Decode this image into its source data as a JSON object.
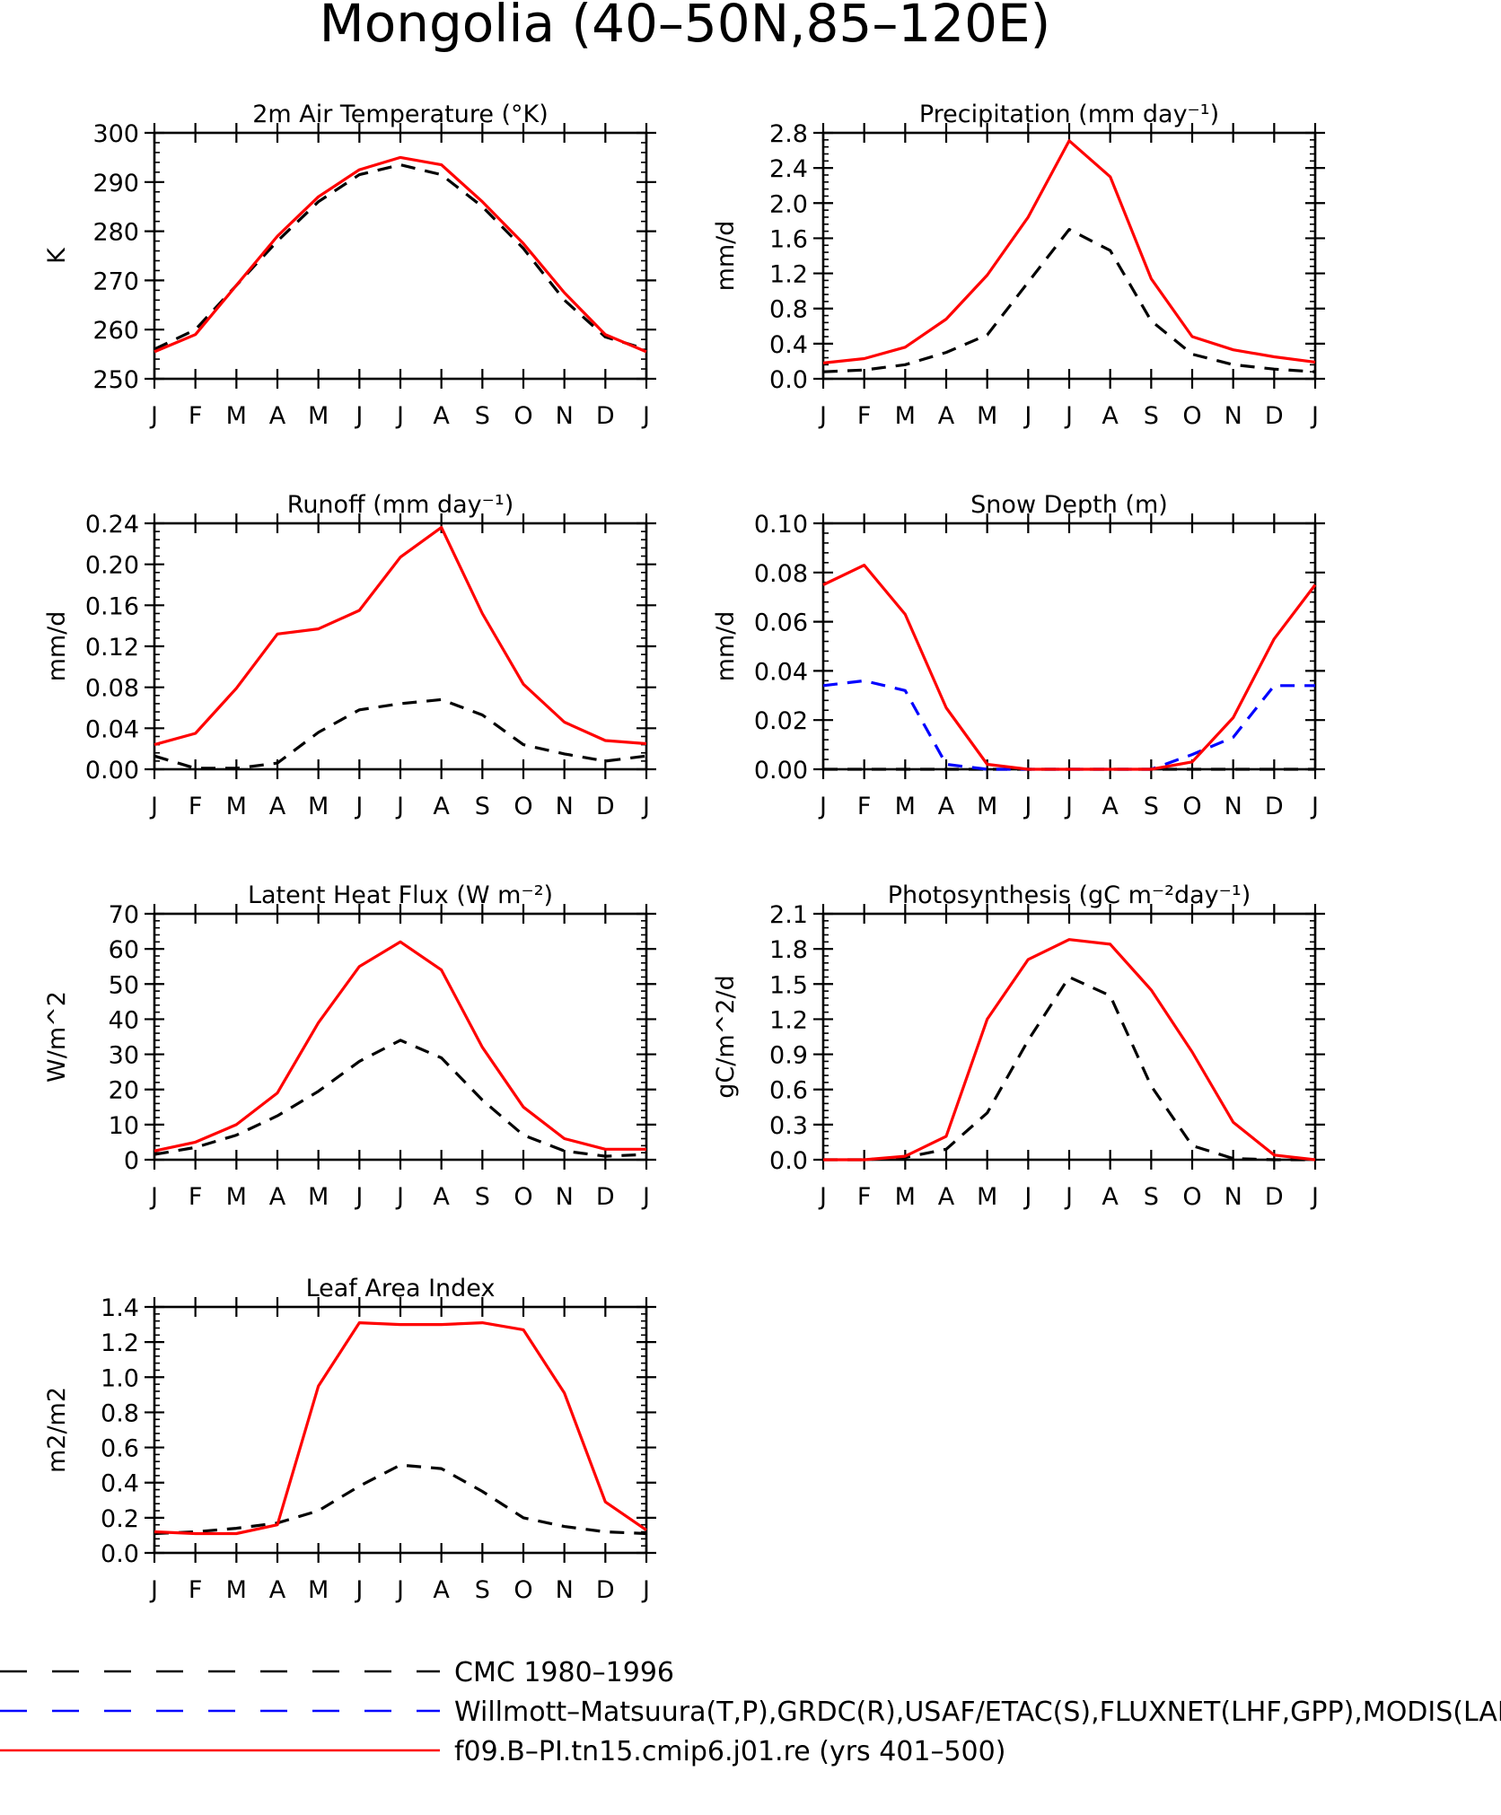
{
  "title": "Mongolia (40–50N,85–120E)",
  "months": [
    "J",
    "F",
    "M",
    "A",
    "M",
    "J",
    "J",
    "A",
    "S",
    "O",
    "N",
    "D",
    "J"
  ],
  "colors": {
    "obs_black": "#000000",
    "obs_blue": "#0000ff",
    "model": "#ff0000"
  },
  "legend": [
    {
      "label": "CMC 1980–1996",
      "color": "#000000",
      "dash": "dashed"
    },
    {
      "label": "Willmott–Matsuura(T,P),GRDC(R),USAF/ETAC(S),FLUXNET(LHF,GPP),MODIS(LAI)",
      "color": "#0000ff",
      "dash": "dashed"
    },
    {
      "label": "f09.B–PI.tn15.cmip6.j01.re (yrs 401–500)",
      "color": "#ff0000",
      "dash": "solid"
    }
  ],
  "chart_data": [
    {
      "type": "line",
      "title": "2m Air Temperature (°K)",
      "ylabel": "K",
      "ylim": [
        250,
        300
      ],
      "yticks": [
        "250",
        "260",
        "270",
        "280",
        "290",
        "300"
      ],
      "x": [
        "J",
        "F",
        "M",
        "A",
        "M",
        "J",
        "J",
        "A",
        "S",
        "O",
        "N",
        "D",
        "J"
      ],
      "series": [
        {
          "color": "#000000",
          "dash": "dashed",
          "values": [
            256,
            260,
            269,
            278,
            286,
            291.5,
            293.5,
            291.5,
            285,
            276.5,
            266,
            258.5,
            256
          ]
        },
        {
          "color": "#ff0000",
          "dash": "solid",
          "values": [
            255.5,
            259,
            269,
            279,
            287,
            292.5,
            295,
            293.5,
            286,
            277.5,
            267.5,
            259,
            255.5
          ]
        }
      ]
    },
    {
      "type": "line",
      "title": "Precipitation (mm day⁻¹)",
      "ylabel": "mm/d",
      "ylim": [
        0,
        2.8
      ],
      "yticks": [
        "0.0",
        "0.4",
        "0.8",
        "1.2",
        "1.6",
        "2.0",
        "2.4",
        "2.8"
      ],
      "x": [
        "J",
        "F",
        "M",
        "A",
        "M",
        "J",
        "J",
        "A",
        "S",
        "O",
        "N",
        "D",
        "J"
      ],
      "series": [
        {
          "color": "#000000",
          "dash": "dashed",
          "values": [
            0.08,
            0.1,
            0.16,
            0.3,
            0.5,
            1.1,
            1.7,
            1.46,
            0.66,
            0.28,
            0.16,
            0.11,
            0.08
          ]
        },
        {
          "color": "#ff0000",
          "dash": "solid",
          "values": [
            0.18,
            0.23,
            0.36,
            0.68,
            1.18,
            1.84,
            2.71,
            2.3,
            1.14,
            0.48,
            0.33,
            0.25,
            0.19
          ]
        }
      ]
    },
    {
      "type": "line",
      "title": "Runoff (mm day⁻¹)",
      "ylabel": "mm/d",
      "ylim": [
        0,
        0.24
      ],
      "yticks": [
        "0.00",
        "0.04",
        "0.08",
        "0.12",
        "0.16",
        "0.20",
        "0.24"
      ],
      "x": [
        "J",
        "F",
        "M",
        "A",
        "M",
        "J",
        "J",
        "A",
        "S",
        "O",
        "N",
        "D",
        "J"
      ],
      "series": [
        {
          "color": "#000000",
          "dash": "dashed",
          "values": [
            0.013,
            0.001,
            0.001,
            0.006,
            0.036,
            0.058,
            0.064,
            0.068,
            0.053,
            0.024,
            0.015,
            0.008,
            0.013
          ]
        },
        {
          "color": "#ff0000",
          "dash": "solid",
          "values": [
            0.024,
            0.035,
            0.079,
            0.132,
            0.137,
            0.155,
            0.207,
            0.236,
            0.152,
            0.083,
            0.046,
            0.028,
            0.025
          ]
        }
      ]
    },
    {
      "type": "line",
      "title": "Snow Depth (m)",
      "ylabel": "mm/d",
      "ylim": [
        0,
        0.1
      ],
      "yticks": [
        "0.00",
        "0.02",
        "0.04",
        "0.06",
        "0.08",
        "0.10"
      ],
      "x": [
        "J",
        "F",
        "M",
        "A",
        "M",
        "J",
        "J",
        "A",
        "S",
        "O",
        "N",
        "D",
        "J"
      ],
      "series": [
        {
          "color": "#000000",
          "dash": "dashed",
          "values": [
            0,
            0,
            0,
            0,
            0,
            0,
            0,
            0,
            0,
            0,
            0,
            0,
            0
          ]
        },
        {
          "color": "#0000ff",
          "dash": "dashed",
          "values": [
            0.034,
            0.036,
            0.032,
            0.002,
            0,
            0,
            0,
            0,
            0,
            0.006,
            0.013,
            0.034,
            0.034
          ]
        },
        {
          "color": "#ff0000",
          "dash": "solid",
          "values": [
            0.075,
            0.083,
            0.063,
            0.025,
            0.002,
            0,
            0,
            0,
            0,
            0.003,
            0.021,
            0.053,
            0.075
          ]
        }
      ]
    },
    {
      "type": "line",
      "title": "Latent Heat Flux (W m⁻²)",
      "ylabel": "W/m^2",
      "ylim": [
        0,
        70
      ],
      "yticks": [
        "0",
        "10",
        "20",
        "30",
        "40",
        "50",
        "60",
        "70"
      ],
      "x": [
        "J",
        "F",
        "M",
        "A",
        "M",
        "J",
        "J",
        "A",
        "S",
        "O",
        "N",
        "D",
        "J"
      ],
      "series": [
        {
          "color": "#000000",
          "dash": "dashed",
          "values": [
            1.5,
            3.5,
            7,
            12.5,
            19.5,
            28,
            34,
            29,
            17,
            7,
            2.5,
            1,
            1.5
          ]
        },
        {
          "color": "#ff0000",
          "dash": "solid",
          "values": [
            2.5,
            5,
            10,
            19,
            39,
            55,
            62,
            54,
            32,
            15,
            6,
            3,
            3
          ]
        }
      ]
    },
    {
      "type": "line",
      "title": "Photosynthesis (gC m⁻²day⁻¹)",
      "ylabel": "gC/m^2/d",
      "ylim": [
        0,
        2.1
      ],
      "yticks": [
        "0.0",
        "0.3",
        "0.6",
        "0.9",
        "1.2",
        "1.5",
        "1.8",
        "2.1"
      ],
      "x": [
        "J",
        "F",
        "M",
        "A",
        "M",
        "J",
        "J",
        "A",
        "S",
        "O",
        "N",
        "D",
        "J"
      ],
      "series": [
        {
          "color": "#000000",
          "dash": "dashed",
          "values": [
            0.0,
            0.0,
            0.02,
            0.09,
            0.4,
            1.02,
            1.56,
            1.4,
            0.63,
            0.12,
            0.01,
            0.0,
            0.0
          ]
        },
        {
          "color": "#ff0000",
          "dash": "solid",
          "values": [
            0.0,
            0.0,
            0.03,
            0.2,
            1.2,
            1.71,
            1.88,
            1.84,
            1.45,
            0.92,
            0.32,
            0.04,
            0.0
          ]
        }
      ]
    },
    {
      "type": "line",
      "title": "Leaf Area Index",
      "ylabel": "m2/m2",
      "ylim": [
        0,
        1.4
      ],
      "yticks": [
        "0.0",
        "0.2",
        "0.4",
        "0.6",
        "0.8",
        "1.0",
        "1.2",
        "1.4"
      ],
      "x": [
        "J",
        "F",
        "M",
        "A",
        "M",
        "J",
        "J",
        "A",
        "S",
        "O",
        "N",
        "D",
        "J"
      ],
      "series": [
        {
          "color": "#000000",
          "dash": "dashed",
          "values": [
            0.11,
            0.12,
            0.14,
            0.17,
            0.24,
            0.38,
            0.5,
            0.48,
            0.35,
            0.2,
            0.15,
            0.12,
            0.11
          ]
        },
        {
          "color": "#ff0000",
          "dash": "solid",
          "values": [
            0.12,
            0.11,
            0.11,
            0.16,
            0.95,
            1.31,
            1.3,
            1.3,
            1.31,
            1.27,
            0.91,
            0.29,
            0.13
          ]
        }
      ]
    }
  ]
}
